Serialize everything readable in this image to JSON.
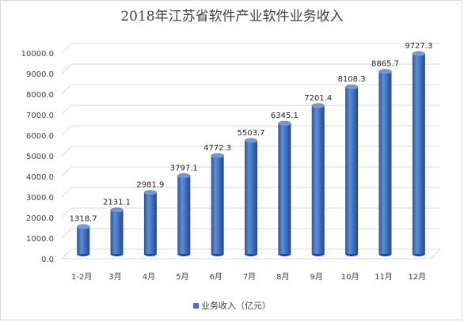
{
  "chart_data": {
    "type": "bar",
    "title": "2018年江苏省软件产业软件业务收入",
    "categories": [
      "1-2月",
      "3月",
      "4月",
      "5月",
      "6月",
      "7月",
      "8月",
      "9月",
      "10月",
      "11月",
      "12月"
    ],
    "series": [
      {
        "name": "业务收入（亿元）",
        "values": [
          1318.7,
          2131.1,
          2981.9,
          3797.1,
          4772.3,
          5503.7,
          6345.1,
          7201.4,
          8108.3,
          8865.7,
          9727.3
        ],
        "labels": [
          "1318.7",
          "2131.1",
          "2981.9",
          "3797.1",
          "4772.3",
          "5503.7",
          "6345.1",
          "7201.4",
          "8108.3",
          "8865.7",
          "9727.3"
        ]
      }
    ],
    "y_ticks": [
      "0.0",
      "1000.0",
      "2000.0",
      "3000.0",
      "4000.0",
      "5000.0",
      "6000.0",
      "7000.0",
      "8000.0",
      "9000.0",
      "10000.0"
    ],
    "ylim": [
      0,
      10000
    ],
    "grid": true,
    "legend_position": "bottom",
    "bar_color": "#4472c4",
    "style": "3d-cylinder"
  }
}
